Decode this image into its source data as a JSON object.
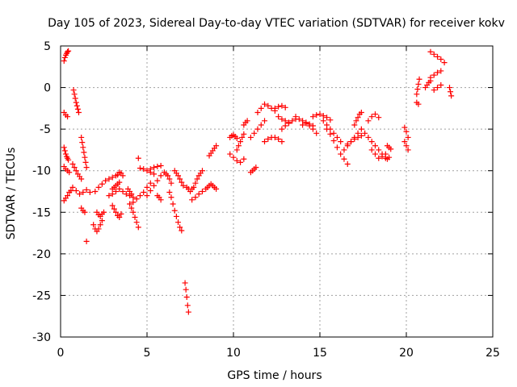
{
  "chart_data": {
    "type": "scatter",
    "title": "Day 105 of 2023, Sidereal Day-to-day VTEC variation (SDTVAR) for receiver kokv",
    "xlabel": "GPS time / hours",
    "ylabel": "SDTVAR / TECUs",
    "xlim": [
      0,
      25
    ],
    "ylim": [
      -30,
      5
    ],
    "xticks": [
      0,
      5,
      10,
      15,
      20,
      25
    ],
    "yticks": [
      5,
      0,
      -5,
      -10,
      -15,
      -20,
      -25,
      -30
    ],
    "xtick_labels": [
      "0",
      "5",
      "10",
      "15",
      "20",
      "25"
    ],
    "ytick_labels": [
      "5",
      "0",
      "-5",
      "-10",
      "-15",
      "-20",
      "-25",
      "-30"
    ],
    "grid": true,
    "marker": "plus",
    "color": "#ff0000",
    "series": [
      {
        "name": "s01",
        "x": [
          0.2,
          0.25,
          0.3,
          0.35,
          0.4,
          0.45
        ],
        "y": [
          3.2,
          3.6,
          3.9,
          4.1,
          4.3,
          4.4
        ]
      },
      {
        "name": "s02",
        "x": [
          0.2,
          0.3,
          0.4
        ],
        "y": [
          -3.0,
          -3.3,
          -3.5
        ]
      },
      {
        "name": "s03",
        "x": [
          0.2,
          0.25,
          0.3,
          0.35,
          0.4,
          0.45
        ],
        "y": [
          -7.2,
          -7.6,
          -8.0,
          -8.3,
          -8.5,
          -8.7
        ]
      },
      {
        "name": "s04",
        "x": [
          0.2,
          0.3,
          0.4,
          0.5
        ],
        "y": [
          -9.5,
          -9.8,
          -10.0,
          -10.2
        ]
      },
      {
        "name": "s05",
        "x": [
          0.2,
          0.3,
          0.4,
          0.5,
          0.6
        ],
        "y": [
          -13.6,
          -13.3,
          -13.0,
          -12.6,
          -12.4
        ]
      },
      {
        "name": "s06",
        "x": [
          0.75,
          0.8,
          0.85,
          0.9,
          0.95,
          1.0,
          1.05
        ],
        "y": [
          -0.3,
          -0.8,
          -1.3,
          -1.8,
          -2.2,
          -2.6,
          -3.0
        ]
      },
      {
        "name": "s07",
        "x": [
          0.7,
          0.8,
          0.9,
          1.0,
          1.1,
          1.2
        ],
        "y": [
          -9.2,
          -9.6,
          -10.0,
          -10.4,
          -10.7,
          -11.0
        ]
      },
      {
        "name": "s08",
        "x": [
          0.7,
          0.9,
          1.1,
          1.3,
          1.5,
          1.7
        ],
        "y": [
          -12.0,
          -12.4,
          -12.8,
          -12.6,
          -12.3,
          -12.6
        ]
      },
      {
        "name": "s09",
        "x": [
          1.2,
          1.25,
          1.3,
          1.35,
          1.4,
          1.45,
          1.5
        ],
        "y": [
          -6.0,
          -6.6,
          -7.2,
          -7.8,
          -8.4,
          -9.0,
          -9.6
        ]
      },
      {
        "name": "s10",
        "x": [
          1.2,
          1.3,
          1.4
        ],
        "y": [
          -14.5,
          -14.8,
          -15.0
        ]
      },
      {
        "name": "s11",
        "x": [
          1.5
        ],
        "y": [
          -18.5
        ]
      },
      {
        "name": "s12",
        "x": [
          1.9,
          2.0,
          2.1,
          2.2,
          2.3,
          2.4
        ],
        "y": [
          -16.5,
          -17.0,
          -17.3,
          -17.0,
          -16.5,
          -16.0
        ]
      },
      {
        "name": "s13",
        "x": [
          2.0,
          2.2,
          2.4,
          2.6,
          2.8,
          3.0,
          3.2
        ],
        "y": [
          -12.5,
          -12.0,
          -11.6,
          -11.2,
          -11.0,
          -10.8,
          -10.6
        ]
      },
      {
        "name": "s14",
        "x": [
          2.1,
          2.2,
          2.3,
          2.4,
          2.5
        ],
        "y": [
          -15.0,
          -15.3,
          -15.5,
          -15.2,
          -15.0
        ]
      },
      {
        "name": "s15",
        "x": [
          2.8,
          3.0,
          3.2,
          3.4,
          3.6,
          3.8,
          4.0
        ],
        "y": [
          -13.0,
          -12.8,
          -12.5,
          -12.2,
          -12.5,
          -12.8,
          -13.0
        ]
      },
      {
        "name": "s16",
        "x": [
          3.0,
          3.1,
          3.2,
          3.3,
          3.4,
          3.5
        ],
        "y": [
          -14.2,
          -14.6,
          -15.0,
          -15.4,
          -15.6,
          -15.2
        ]
      },
      {
        "name": "s17",
        "x": [
          3.0,
          3.1,
          3.2,
          3.3,
          3.4
        ],
        "y": [
          -12.2,
          -12.0,
          -11.8,
          -11.6,
          -11.4
        ]
      },
      {
        "name": "s18",
        "x": [
          3.3,
          3.4,
          3.5,
          3.6
        ],
        "y": [
          -10.5,
          -10.2,
          -10.3,
          -10.6
        ]
      },
      {
        "name": "s19",
        "x": [
          3.9,
          4.0,
          4.1,
          4.2
        ],
        "y": [
          -12.2,
          -12.5,
          -12.8,
          -13.2
        ]
      },
      {
        "name": "s20",
        "x": [
          4.0,
          4.1,
          4.2,
          4.3,
          4.4,
          4.5
        ],
        "y": [
          -14.0,
          -14.5,
          -15.0,
          -15.6,
          -16.2,
          -16.8
        ]
      },
      {
        "name": "s21",
        "x": [
          4.2,
          4.4,
          4.6,
          4.8,
          5.0,
          5.2
        ],
        "y": [
          -13.8,
          -13.4,
          -13.0,
          -12.6,
          -12.0,
          -11.5
        ]
      },
      {
        "name": "s22",
        "x": [
          4.5
        ],
        "y": [
          -8.5
        ]
      },
      {
        "name": "s23",
        "x": [
          4.6,
          4.8,
          5.0,
          5.2,
          5.4
        ],
        "y": [
          -9.7,
          -9.8,
          -10.0,
          -10.2,
          -10.4
        ]
      },
      {
        "name": "s24",
        "x": [
          5.0,
          5.2,
          5.4,
          5.6,
          5.8
        ],
        "y": [
          -13.0,
          -12.4,
          -11.8,
          -11.2,
          -10.6
        ]
      },
      {
        "name": "s25",
        "x": [
          5.2,
          5.4,
          5.6,
          5.8
        ],
        "y": [
          -9.8,
          -9.6,
          -9.5,
          -9.4
        ]
      },
      {
        "name": "s26",
        "x": [
          5.6,
          5.7,
          5.8
        ],
        "y": [
          -13.0,
          -13.2,
          -13.5
        ]
      },
      {
        "name": "s27",
        "x": [
          6.0,
          6.1,
          6.2,
          6.3,
          6.4
        ],
        "y": [
          -10.2,
          -10.4,
          -10.6,
          -11.0,
          -11.5
        ]
      },
      {
        "name": "s28",
        "x": [
          6.3,
          6.4,
          6.5,
          6.6,
          6.7,
          6.8,
          6.9,
          7.0
        ],
        "y": [
          -12.6,
          -13.2,
          -14.0,
          -14.8,
          -15.5,
          -16.2,
          -16.8,
          -17.2
        ]
      },
      {
        "name": "s29",
        "x": [
          6.6,
          6.7,
          6.8,
          6.9,
          7.0,
          7.1
        ],
        "y": [
          -10.0,
          -10.3,
          -10.6,
          -11.0,
          -11.4,
          -11.8
        ]
      },
      {
        "name": "s30",
        "x": [
          7.2,
          7.25,
          7.3,
          7.35,
          7.4
        ],
        "y": [
          -23.5,
          -24.3,
          -25.2,
          -26.2,
          -27.0
        ]
      },
      {
        "name": "s31",
        "x": [
          7.3,
          7.4,
          7.5,
          7.6,
          7.7
        ],
        "y": [
          -12.0,
          -12.2,
          -12.5,
          -12.2,
          -12.0
        ]
      },
      {
        "name": "s32",
        "x": [
          7.6,
          7.8,
          8.0,
          8.2,
          8.4
        ],
        "y": [
          -13.5,
          -13.2,
          -12.8,
          -12.5,
          -12.2
        ]
      },
      {
        "name": "s33",
        "x": [
          7.8,
          7.9,
          8.0,
          8.1,
          8.2
        ],
        "y": [
          -11.5,
          -11.0,
          -10.6,
          -10.3,
          -10.0
        ]
      },
      {
        "name": "s34",
        "x": [
          8.6,
          8.7,
          8.8,
          8.9,
          9.0
        ],
        "y": [
          -8.2,
          -7.9,
          -7.6,
          -7.3,
          -7.0
        ]
      },
      {
        "name": "s35",
        "x": [
          8.5,
          8.6,
          8.7,
          8.8,
          8.9,
          9.0
        ],
        "y": [
          -12.0,
          -11.8,
          -11.6,
          -11.8,
          -12.0,
          -12.2
        ]
      },
      {
        "name": "s36",
        "x": [
          9.8,
          9.9,
          10.0,
          10.1,
          10.2
        ],
        "y": [
          -6.0,
          -5.8,
          -5.7,
          -5.9,
          -6.1
        ]
      },
      {
        "name": "s37",
        "x": [
          9.8,
          10.0,
          10.2,
          10.4,
          10.6
        ],
        "y": [
          -8.0,
          -8.4,
          -8.8,
          -9.0,
          -8.6
        ]
      },
      {
        "name": "s38",
        "x": [
          10.2,
          10.3,
          10.4,
          10.5,
          10.6
        ],
        "y": [
          -7.5,
          -7.0,
          -6.5,
          -6.0,
          -5.6
        ]
      },
      {
        "name": "s39",
        "x": [
          10.6,
          10.7,
          10.8
        ],
        "y": [
          -4.5,
          -4.2,
          -4.0
        ]
      },
      {
        "name": "s40",
        "x": [
          11.0,
          11.1,
          11.2,
          11.3
        ],
        "y": [
          -10.2,
          -10.0,
          -9.8,
          -9.6
        ]
      },
      {
        "name": "s41",
        "x": [
          11.0,
          11.2,
          11.4,
          11.6,
          11.8
        ],
        "y": [
          -6.0,
          -5.5,
          -5.0,
          -4.5,
          -4.0
        ]
      },
      {
        "name": "s42",
        "x": [
          11.4,
          11.6,
          11.8,
          12.0,
          12.2,
          12.4
        ],
        "y": [
          -3.0,
          -2.5,
          -2.0,
          -2.2,
          -2.5,
          -2.8
        ]
      },
      {
        "name": "s43",
        "x": [
          11.8,
          12.0,
          12.2,
          12.4,
          12.6,
          12.8
        ],
        "y": [
          -6.5,
          -6.2,
          -6.0,
          -6.0,
          -6.2,
          -6.5
        ]
      },
      {
        "name": "s44",
        "x": [
          12.4,
          12.6,
          12.8,
          13.0
        ],
        "y": [
          -2.5,
          -2.3,
          -2.2,
          -2.4
        ]
      },
      {
        "name": "s45",
        "x": [
          12.8,
          13.0,
          13.2,
          13.4,
          13.6
        ],
        "y": [
          -5.0,
          -4.6,
          -4.2,
          -4.0,
          -3.8
        ]
      },
      {
        "name": "s46",
        "x": [
          12.6,
          12.8,
          13.0,
          13.2
        ],
        "y": [
          -3.5,
          -3.8,
          -4.0,
          -4.3
        ]
      },
      {
        "name": "s47",
        "x": [
          13.6,
          13.8,
          14.0,
          14.2,
          14.4,
          14.6
        ],
        "y": [
          -3.5,
          -3.8,
          -4.0,
          -4.2,
          -4.4,
          -4.6
        ]
      },
      {
        "name": "s48",
        "x": [
          14.0,
          14.2,
          14.4,
          14.6,
          14.8
        ],
        "y": [
          -4.5,
          -4.3,
          -4.6,
          -5.0,
          -5.5
        ]
      },
      {
        "name": "s49",
        "x": [
          14.6,
          14.8,
          15.0,
          15.2,
          15.4,
          15.6
        ],
        "y": [
          -3.5,
          -3.3,
          -3.2,
          -3.4,
          -3.6,
          -3.9
        ]
      },
      {
        "name": "s50",
        "x": [
          15.2,
          15.4,
          15.6,
          15.8,
          16.0,
          16.2
        ],
        "y": [
          -4.0,
          -4.5,
          -5.0,
          -5.5,
          -6.0,
          -6.5
        ]
      },
      {
        "name": "s51",
        "x": [
          15.4,
          15.6,
          15.8,
          16.0,
          16.2,
          16.4,
          16.6
        ],
        "y": [
          -5.0,
          -5.6,
          -6.4,
          -7.2,
          -8.0,
          -8.6,
          -9.2
        ]
      },
      {
        "name": "s52",
        "x": [
          16.4,
          16.6,
          16.8,
          17.0,
          17.2
        ],
        "y": [
          -7.5,
          -7.0,
          -6.5,
          -6.0,
          -5.5
        ]
      },
      {
        "name": "s53",
        "x": [
          16.6,
          16.8,
          17.0,
          17.2,
          17.4
        ],
        "y": [
          -6.8,
          -6.5,
          -6.2,
          -6.0,
          -5.8
        ]
      },
      {
        "name": "s54",
        "x": [
          17.0,
          17.1,
          17.2,
          17.3,
          17.4
        ],
        "y": [
          -4.5,
          -4.0,
          -3.6,
          -3.2,
          -3.0
        ]
      },
      {
        "name": "s55",
        "x": [
          17.4,
          17.6,
          17.8,
          18.0,
          18.2,
          18.4,
          18.6
        ],
        "y": [
          -5.0,
          -5.5,
          -6.0,
          -6.5,
          -7.0,
          -7.5,
          -8.0
        ]
      },
      {
        "name": "s56",
        "x": [
          17.8,
          18.0,
          18.2,
          18.4
        ],
        "y": [
          -4.0,
          -3.5,
          -3.2,
          -3.6
        ]
      },
      {
        "name": "s57",
        "x": [
          18.0,
          18.2,
          18.4,
          18.6,
          18.8
        ],
        "y": [
          -7.5,
          -8.0,
          -8.5,
          -8.3,
          -8.0
        ]
      },
      {
        "name": "s58",
        "x": [
          18.9,
          19.0,
          19.1
        ],
        "y": [
          -7.0,
          -7.2,
          -7.4
        ]
      },
      {
        "name": "s59",
        "x": [
          18.8,
          18.9,
          19.0
        ],
        "y": [
          -8.5,
          -8.6,
          -8.4
        ]
      },
      {
        "name": "s60",
        "x": [
          19.9,
          20.0,
          20.1
        ],
        "y": [
          -4.8,
          -5.3,
          -6.0
        ]
      },
      {
        "name": "s61",
        "x": [
          19.9,
          20.0,
          20.1
        ],
        "y": [
          -6.5,
          -7.0,
          -7.5
        ]
      },
      {
        "name": "s62",
        "x": [
          20.6,
          20.65,
          20.7,
          20.75
        ],
        "y": [
          -0.8,
          -0.2,
          0.4,
          1.0
        ]
      },
      {
        "name": "s63",
        "x": [
          20.6,
          20.7
        ],
        "y": [
          -1.8,
          -2.0
        ]
      },
      {
        "name": "s64",
        "x": [
          21.1,
          21.2,
          21.3,
          21.4
        ],
        "y": [
          0.0,
          0.3,
          0.6,
          0.8
        ]
      },
      {
        "name": "s65",
        "x": [
          21.4,
          21.6,
          21.8,
          22.0
        ],
        "y": [
          1.2,
          1.5,
          1.8,
          2.0
        ]
      },
      {
        "name": "s66",
        "x": [
          21.4,
          21.6,
          21.8,
          22.0,
          22.2
        ],
        "y": [
          4.3,
          4.0,
          3.7,
          3.4,
          3.0
        ]
      },
      {
        "name": "s67",
        "x": [
          21.6,
          21.8,
          22.0
        ],
        "y": [
          -0.3,
          0.0,
          0.3
        ]
      },
      {
        "name": "s68",
        "x": [
          22.5,
          22.55,
          22.6
        ],
        "y": [
          0.0,
          -0.5,
          -1.0
        ]
      }
    ]
  }
}
